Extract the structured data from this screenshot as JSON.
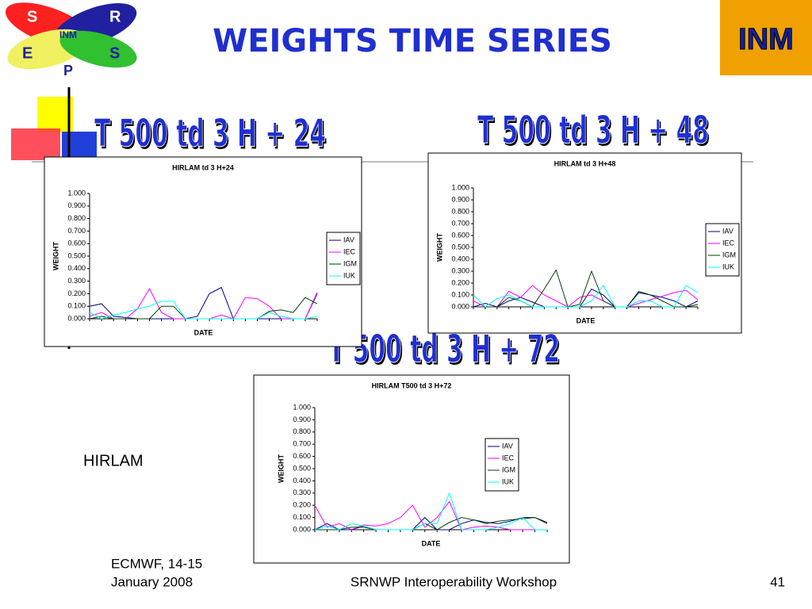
{
  "header": {
    "title": "WEIGHTS TIME SERIES"
  },
  "logo": {
    "letters": [
      "S",
      "R",
      "E",
      "S",
      "P"
    ],
    "center": "INM"
  },
  "right_logo": "INM",
  "headings": [
    "T 500  td 3 H + 24",
    "T 500  td 3 H + 48",
    "T 500  td 3 H + 72"
  ],
  "side_label": "HIRLAM",
  "footer": {
    "left": [
      "ECMWF, 14-15",
      "January 2008"
    ],
    "center": "SRNWP Interoperability Workshop",
    "page": 41
  },
  "chart_data": [
    {
      "type": "line",
      "title": "HIRLAM td 3 H+24",
      "x_label": "DATE",
      "y_label": "WEIGHT",
      "categories": [
        null,
        null,
        null,
        null,
        null,
        null,
        null,
        null,
        null,
        null,
        null,
        null,
        null,
        null,
        null,
        null,
        null,
        null,
        null,
        null
      ],
      "ylim": [
        0,
        1
      ],
      "yticks": [
        {
          "value": 0,
          "label": "0.000"
        },
        {
          "value": 0.1,
          "label": "0.100"
        },
        {
          "value": 0.2,
          "label": "0.200"
        },
        {
          "value": 0.3,
          "label": "0.300"
        },
        {
          "value": 0.4,
          "label": "0.400"
        },
        {
          "value": 0.5,
          "label": "0.500"
        },
        {
          "value": 0.6,
          "label": "0.600"
        },
        {
          "value": 0.7,
          "label": "0.700"
        },
        {
          "value": 0.8,
          "label": "0.800"
        },
        {
          "value": 0.9,
          "label": "0.900"
        },
        {
          "value": 1,
          "label": "1.000"
        }
      ],
      "series": [
        {
          "name": "IAV",
          "color": "#000080",
          "values": [
            0.1,
            0.12,
            0.02,
            0.01,
            0,
            0,
            0,
            0,
            0,
            0.02,
            0.2,
            0.25,
            0,
            0,
            0,
            0,
            0,
            0,
            0,
            0.2
          ]
        },
        {
          "name": "IEC",
          "color": "#ff00ff",
          "values": [
            0.02,
            0.05,
            0,
            0,
            0.08,
            0.24,
            0.05,
            0,
            0,
            0,
            0,
            0.03,
            0,
            0.17,
            0.16,
            0.1,
            0,
            0,
            0,
            0.21
          ]
        },
        {
          "name": "IGM",
          "color": "#004000",
          "values": [
            0,
            0.02,
            0,
            0,
            0,
            0,
            0.1,
            0.1,
            0,
            0,
            0,
            0,
            0,
            0,
            0,
            0.06,
            0.07,
            0.05,
            0.17,
            0.12
          ]
        },
        {
          "name": "IUK",
          "color": "#00ffff",
          "values": [
            0.05,
            0,
            0.03,
            0.05,
            0.08,
            0.1,
            0.14,
            0.14,
            0,
            0,
            0,
            0,
            0,
            0,
            0,
            0.05,
            0.02,
            0,
            0,
            0.02
          ]
        }
      ]
    },
    {
      "type": "line",
      "title": "HIRLAM td 3 H+48",
      "x_label": "DATE",
      "y_label": "WEIGHT",
      "categories": [
        null,
        null,
        null,
        null,
        null,
        null,
        null,
        null,
        null,
        null,
        null,
        null,
        null,
        null,
        null,
        null,
        null,
        null,
        null,
        null
      ],
      "ylim": [
        0,
        1
      ],
      "yticks": [
        {
          "value": 0,
          "label": "0.000"
        },
        {
          "value": 0.1,
          "label": "0.100"
        },
        {
          "value": 0.2,
          "label": "0.200"
        },
        {
          "value": 0.3,
          "label": "0.300"
        },
        {
          "value": 0.4,
          "label": "0.400"
        },
        {
          "value": 0.5,
          "label": "0.500"
        },
        {
          "value": 0.6,
          "label": "0.600"
        },
        {
          "value": 0.7,
          "label": "0.700"
        },
        {
          "value": 0.8,
          "label": "0.800"
        },
        {
          "value": 0.9,
          "label": "0.900"
        },
        {
          "value": 1,
          "label": "1.000"
        }
      ],
      "series": [
        {
          "name": "IAV",
          "color": "#000080",
          "values": [
            0,
            0.03,
            0,
            0.05,
            0.08,
            0.04,
            0,
            0,
            0,
            0,
            0.15,
            0.1,
            0,
            0,
            0.12,
            0.1,
            0.08,
            0.05,
            0,
            0.05
          ]
        },
        {
          "name": "IEC",
          "color": "#ff00ff",
          "values": [
            0.05,
            0,
            0,
            0.13,
            0.08,
            0.18,
            0.1,
            0.05,
            0,
            0.08,
            0.1,
            0.05,
            0,
            0,
            0.03,
            0.06,
            0.09,
            0.12,
            0.14,
            0.06
          ]
        },
        {
          "name": "IGM",
          "color": "#004000",
          "values": [
            0,
            0,
            0,
            0.08,
            0.05,
            0,
            0.15,
            0.31,
            0,
            0.02,
            0.3,
            0.05,
            0,
            0,
            0.13,
            0.1,
            0.05,
            0,
            0,
            0.02
          ]
        },
        {
          "name": "IUK",
          "color": "#00ffff",
          "values": [
            0.1,
            0,
            0.07,
            0.1,
            0.05,
            0,
            0,
            0,
            0,
            0,
            0.05,
            0.18,
            0,
            0,
            0.05,
            0.05,
            0,
            0,
            0.18,
            0.12
          ]
        }
      ]
    },
    {
      "type": "line",
      "title": "HIRLAM T500 td 3 H+72",
      "x_label": "DATE",
      "y_label": "WEIGHT",
      "categories": [
        null,
        null,
        null,
        null,
        null,
        null,
        null,
        null,
        null,
        null,
        null,
        null,
        null,
        null,
        null,
        null,
        null,
        null,
        null,
        null
      ],
      "ylim": [
        0,
        1
      ],
      "yticks": [
        {
          "value": 0,
          "label": "0.000"
        },
        {
          "value": 0.1,
          "label": "0.100"
        },
        {
          "value": 0.2,
          "label": "0.200"
        },
        {
          "value": 0.3,
          "label": "0.300"
        },
        {
          "value": 0.4,
          "label": "0.400"
        },
        {
          "value": 0.5,
          "label": "0.500"
        },
        {
          "value": 0.6,
          "label": "0.600"
        },
        {
          "value": 0.7,
          "label": "0.700"
        },
        {
          "value": 0.8,
          "label": "0.800"
        },
        {
          "value": 0.9,
          "label": "0.900"
        },
        {
          "value": 1,
          "label": "1.000"
        }
      ],
      "series": [
        {
          "name": "IAV",
          "color": "#000080",
          "values": [
            0,
            0.05,
            0,
            0,
            0.03,
            0,
            0,
            0,
            0,
            0.1,
            0,
            0,
            0.05,
            0.08,
            0.06,
            0.05,
            0.07,
            0.1,
            0.1,
            0.05
          ]
        },
        {
          "name": "IEC",
          "color": "#ff00ff",
          "values": [
            0.2,
            0.02,
            0.05,
            0,
            0.04,
            0.03,
            0.05,
            0.1,
            0.2,
            0.02,
            0.1,
            0.23,
            0,
            0.02,
            0.03,
            0.02,
            0,
            0,
            0,
            0
          ]
        },
        {
          "name": "IGM",
          "color": "#004000",
          "values": [
            0,
            0,
            0,
            0.02,
            0.02,
            0,
            0,
            0,
            0,
            0.05,
            0,
            0.06,
            0.1,
            0.08,
            0.05,
            0.07,
            0.08,
            0.09,
            0.1,
            0.06
          ]
        },
        {
          "name": "IUK",
          "color": "#00ffff",
          "values": [
            0,
            0.03,
            0,
            0.05,
            0.03,
            0,
            0,
            0,
            0,
            0.05,
            0.05,
            0.3,
            0,
            0,
            0,
            0.02,
            0.05,
            0.1,
            0,
            0
          ]
        }
      ]
    }
  ]
}
